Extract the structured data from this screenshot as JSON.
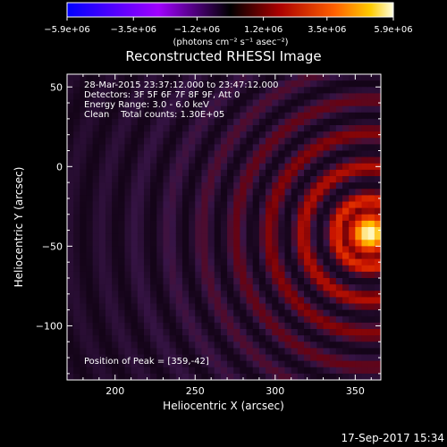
{
  "chart_data": {
    "type": "heatmap",
    "title": "Reconstructed RHESSI Image",
    "xlabel": "Heliocentric X (arcsec)",
    "ylabel": "Heliocentric Y (arcsec)",
    "xlim": [
      170,
      366
    ],
    "ylim": [
      -134,
      58
    ],
    "x_ticks": [
      "200",
      "250",
      "300",
      "350"
    ],
    "y_ticks": [
      "50",
      "0",
      "−50",
      "−100"
    ],
    "colorbar": {
      "range": [
        -5900000.0,
        5900000.0
      ],
      "tick_labels": [
        "−5.9e+06",
        "−3.5e+06",
        "−1.2e+06",
        "1.2e+06",
        "3.5e+06",
        "5.9e+06"
      ],
      "unit": "(photons cm⁻² s⁻¹ asec⁻²)"
    },
    "peak": {
      "x": 359,
      "y": -42
    },
    "annotations": [
      "28-Mar-2015 23:37:12.000 to 23:47:12.000",
      "Detectors: 3F 5F 6F 7F 8F 9F, Att 0",
      "Energy Range: 3.0 - 6.0 keV",
      "Clean    Total counts: 1.30E+05",
      "Position of Peak = [359,-42]"
    ],
    "grid": false
  },
  "footer": {
    "timestamp": "17-Sep-2017 15:34"
  }
}
